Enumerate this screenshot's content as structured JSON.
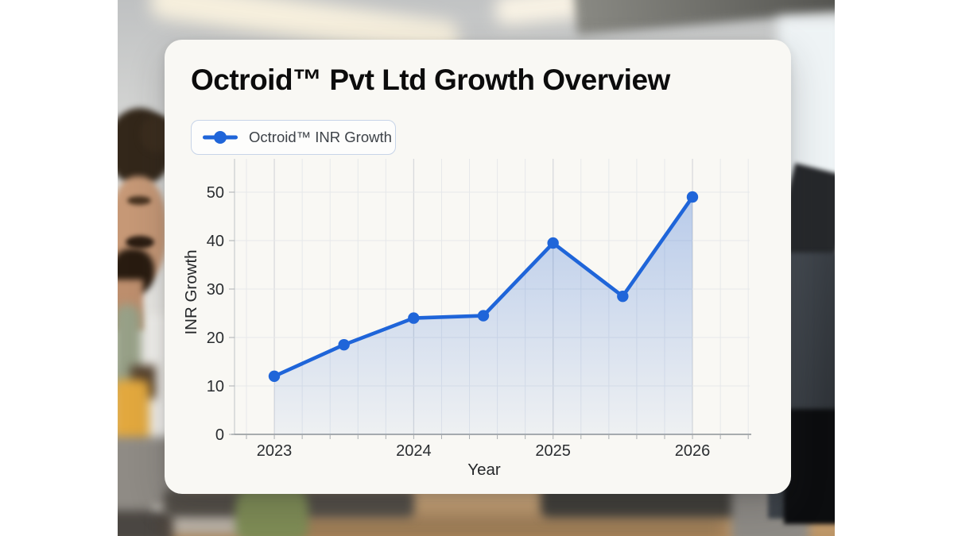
{
  "card": {
    "title": "Octroid™ Pvt Ltd Growth Overview",
    "legend": {
      "label": "Octroid™ INR Growth",
      "line_color": "#1f65d9"
    }
  },
  "chart_data": {
    "type": "line",
    "title": "Octroid™ Pvt Ltd Growth Overview",
    "series": [
      {
        "name": "Octroid™ INR Growth",
        "x": [
          2023,
          2023.5,
          2024,
          2024.5,
          2025,
          2025.5,
          2026
        ],
        "values": [
          12,
          18.5,
          24,
          24.5,
          39.5,
          28.5,
          49
        ]
      }
    ],
    "xlabel": "Year",
    "ylabel": "INR Growth",
    "x_ticks": [
      "2023",
      "2024",
      "2025",
      "2026"
    ],
    "y_ticks": [
      0,
      10,
      20,
      30,
      40,
      50
    ],
    "ylim": [
      0,
      57
    ],
    "grid": true,
    "legend_position": "top-left",
    "marker": "circle",
    "area_fill": true,
    "colors": {
      "line": "#1f65d9",
      "marker": "#1f65d9",
      "area_top": "rgba(36,99,210,0.30)",
      "area_bottom": "rgba(36,99,210,0.05)",
      "grid_minor": "#e6e8ea",
      "grid_major": "#d8dadc",
      "axis_line": "#8e9296",
      "tick_text": "#2a2d30"
    }
  },
  "photo_palette": {
    "desk_wood": "#c8a376",
    "chair_black": "#1c1c1e",
    "shirt_white": "#f2f1ed",
    "hair_brown": "#33271a",
    "skin": "#c69876",
    "plant_green": "#7e8c55",
    "ceiling_light": "#f6efdd",
    "card_background": "#f9f8f4"
  }
}
